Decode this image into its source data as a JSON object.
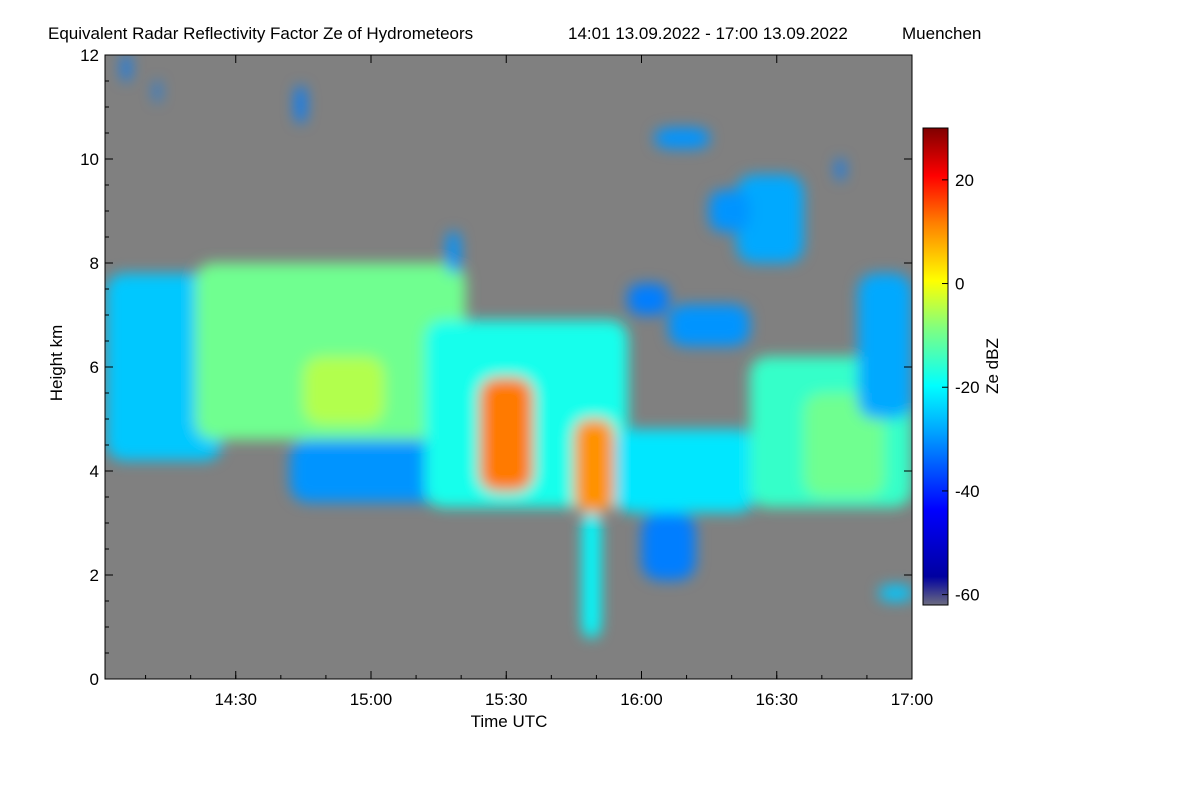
{
  "chart_data": {
    "type": "heatmap",
    "title": "Equivalent Radar Reflectivity Factor Ze of Hydrometeors",
    "period": "14:01 13.09.2022 - 17:00 13.09.2022",
    "location": "Muenchen",
    "xlabel": "Time UTC",
    "ylabel": "Height km",
    "xlim": [
      "14:01",
      "17:00"
    ],
    "ylim": [
      0,
      12
    ],
    "x_ticks": [
      "14:30",
      "15:00",
      "15:30",
      "16:00",
      "16:30",
      "17:00"
    ],
    "y_ticks": [
      0,
      2,
      4,
      6,
      8,
      10,
      12
    ],
    "background_color": "#808080",
    "colorbar": {
      "label": "Ze dBZ",
      "range": [
        -62,
        30
      ],
      "ticks": [
        -60,
        -40,
        -20,
        0,
        20
      ],
      "colormap": "jet"
    },
    "features": [
      {
        "t0": 14.02,
        "t1": 14.45,
        "z0": 4.2,
        "z1": 7.8,
        "dbz": -25
      },
      {
        "t0": 14.35,
        "t1": 15.35,
        "z0": 4.6,
        "z1": 8.0,
        "dbz": -10
      },
      {
        "t0": 14.75,
        "t1": 15.05,
        "z0": 4.9,
        "z1": 6.2,
        "dbz": -5
      },
      {
        "t0": 14.7,
        "t1": 15.45,
        "z0": 3.4,
        "z1": 4.6,
        "dbz": -30
      },
      {
        "t0": 15.2,
        "t1": 15.95,
        "z0": 3.3,
        "z1": 6.9,
        "dbz": -18
      },
      {
        "t0": 15.4,
        "t1": 15.6,
        "z0": 3.6,
        "z1": 5.8,
        "dbz": 12
      },
      {
        "t0": 15.75,
        "t1": 15.9,
        "z0": 3.2,
        "z1": 5.0,
        "dbz": 10
      },
      {
        "t0": 15.78,
        "t1": 15.85,
        "z0": 0.8,
        "z1": 3.2,
        "dbz": -20
      },
      {
        "t0": 15.9,
        "t1": 16.42,
        "z0": 3.2,
        "z1": 4.8,
        "dbz": -22
      },
      {
        "t0": 16.0,
        "t1": 16.2,
        "z0": 1.9,
        "z1": 3.2,
        "dbz": -32
      },
      {
        "t0": 16.4,
        "t1": 17.0,
        "z0": 3.3,
        "z1": 6.2,
        "dbz": -15
      },
      {
        "t0": 16.6,
        "t1": 16.9,
        "z0": 3.5,
        "z1": 5.5,
        "dbz": -10
      },
      {
        "t0": 16.8,
        "t1": 17.0,
        "z0": 5.0,
        "z1": 7.8,
        "dbz": -28
      },
      {
        "t0": 16.1,
        "t1": 16.4,
        "z0": 6.4,
        "z1": 7.2,
        "dbz": -30
      },
      {
        "t0": 15.95,
        "t1": 16.1,
        "z0": 7.0,
        "z1": 7.6,
        "dbz": -32
      },
      {
        "t0": 16.05,
        "t1": 16.25,
        "z0": 10.2,
        "z1": 10.6,
        "dbz": -30
      },
      {
        "t0": 16.35,
        "t1": 16.6,
        "z0": 8.0,
        "z1": 9.7,
        "dbz": -28
      },
      {
        "t0": 16.25,
        "t1": 16.4,
        "z0": 8.6,
        "z1": 9.4,
        "dbz": -30
      },
      {
        "t0": 15.28,
        "t1": 15.33,
        "z0": 7.8,
        "z1": 8.6,
        "dbz": -30
      },
      {
        "t0": 14.72,
        "t1": 14.76,
        "z0": 10.7,
        "z1": 11.4,
        "dbz": -32
      },
      {
        "t0": 14.08,
        "t1": 14.11,
        "z0": 11.5,
        "z1": 12.0,
        "dbz": -32
      },
      {
        "t0": 14.2,
        "t1": 14.22,
        "z0": 11.1,
        "z1": 11.5,
        "dbz": -32
      },
      {
        "t0": 16.72,
        "t1": 16.75,
        "z0": 9.6,
        "z1": 10.0,
        "dbz": -32
      },
      {
        "t0": 16.88,
        "t1": 17.0,
        "z0": 1.5,
        "z1": 1.8,
        "dbz": -25
      }
    ]
  }
}
